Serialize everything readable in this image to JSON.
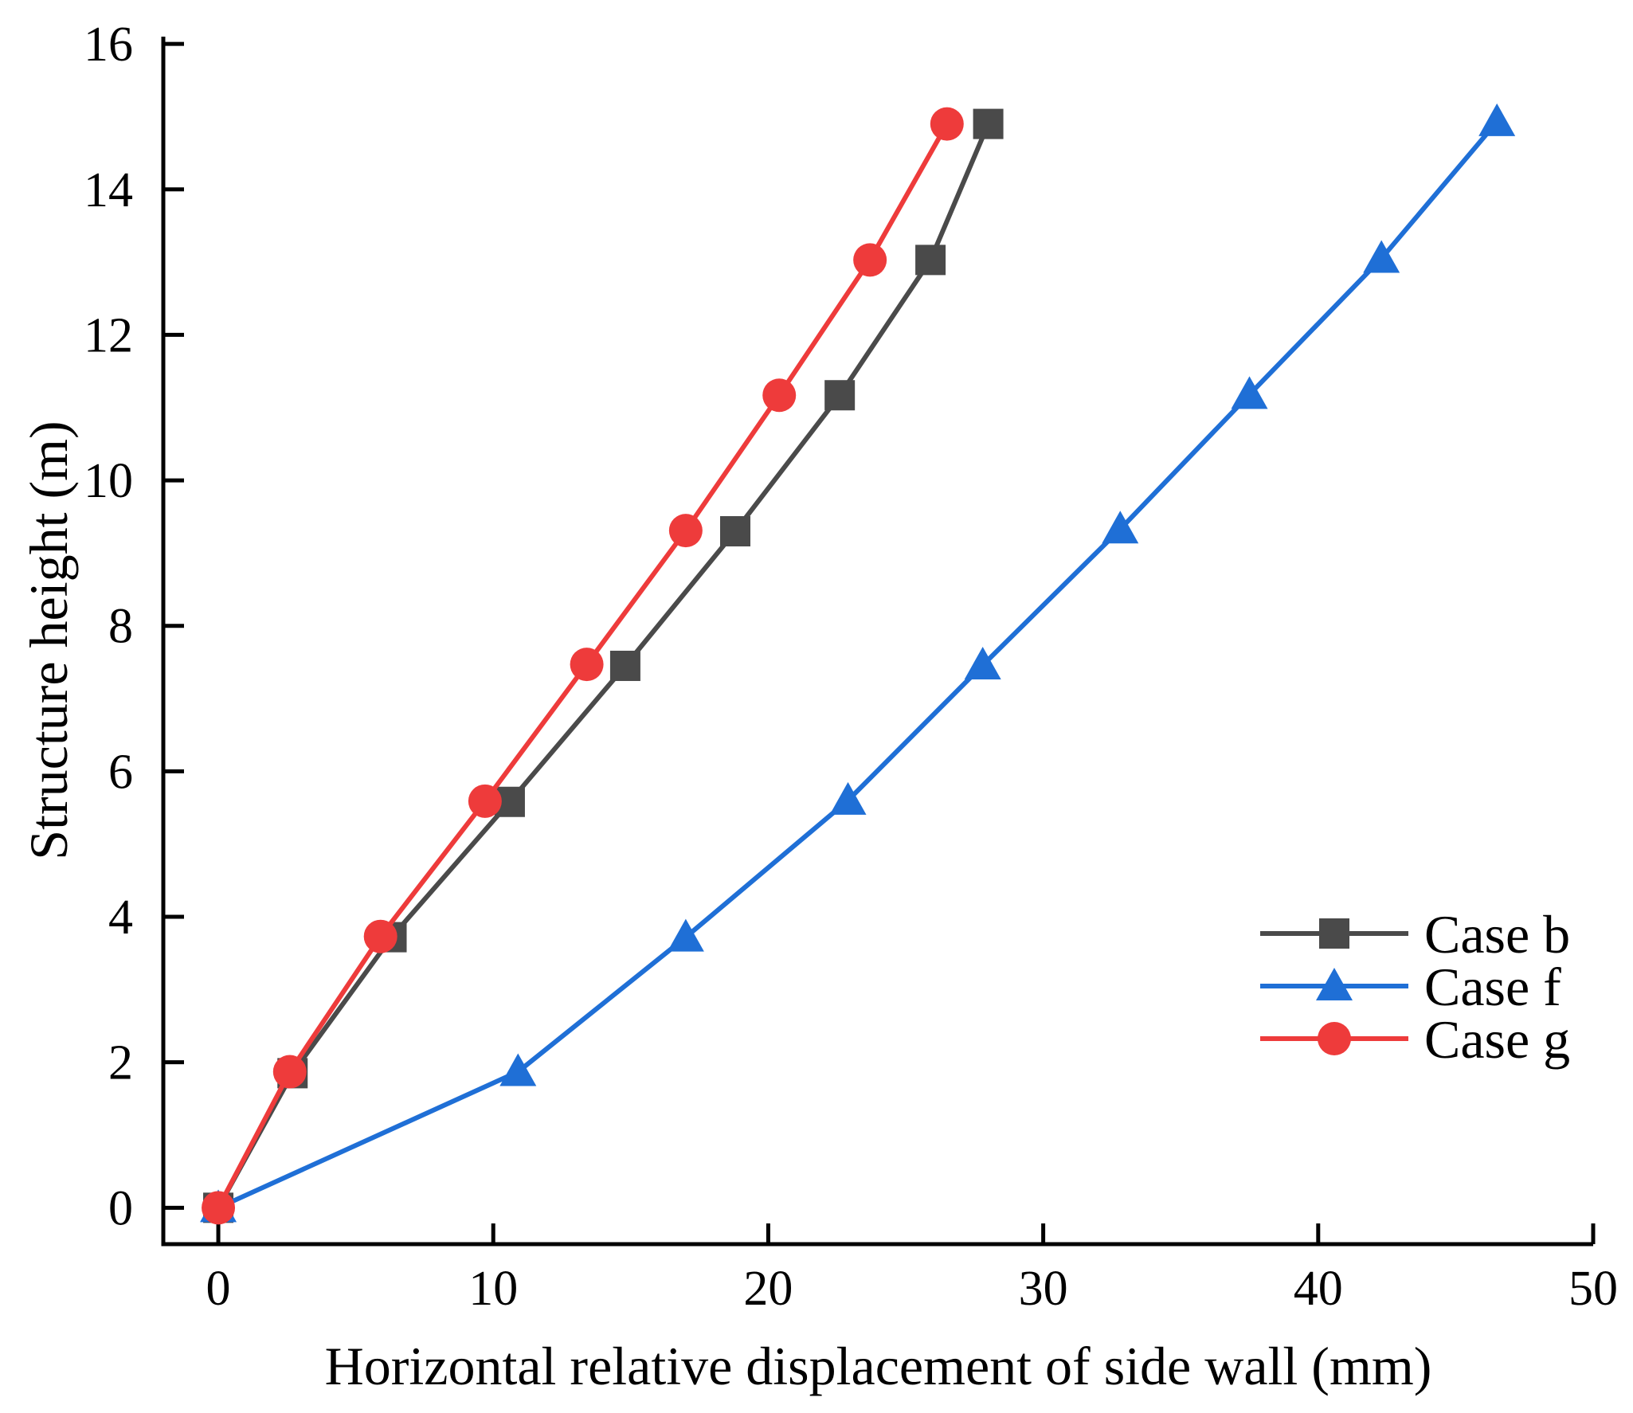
{
  "chart_data": {
    "type": "line",
    "title": "",
    "xlabel": "Horizontal relative displacement of side wall (mm)",
    "ylabel": "Structure height (m)",
    "xlim": [
      -2,
      50
    ],
    "ylim": [
      -0.5,
      16.1
    ],
    "xticks": [
      0,
      10,
      20,
      30,
      40,
      50
    ],
    "yticks": [
      0,
      2,
      4,
      6,
      8,
      10,
      12,
      14,
      16
    ],
    "legend_position": "bottom-right",
    "grid": false,
    "series": [
      {
        "name": "Case b",
        "color": "#4a4a4a",
        "marker": "square",
        "points": [
          [
            0,
            0
          ],
          [
            2.7,
            1.85
          ],
          [
            6.3,
            3.72
          ],
          [
            10.6,
            5.58
          ],
          [
            14.8,
            7.45
          ],
          [
            18.8,
            9.3
          ],
          [
            22.6,
            11.17
          ],
          [
            25.9,
            13.03
          ],
          [
            28,
            14.9
          ]
        ]
      },
      {
        "name": "Case f",
        "color": "#1f6fd6",
        "marker": "triangle",
        "points": [
          [
            0,
            0
          ],
          [
            10.9,
            1.87
          ],
          [
            17,
            3.72
          ],
          [
            22.9,
            5.6
          ],
          [
            27.8,
            7.46
          ],
          [
            32.8,
            9.33
          ],
          [
            37.5,
            11.18
          ],
          [
            42.3,
            13.05
          ],
          [
            46.5,
            14.93
          ]
        ]
      },
      {
        "name": "Case g",
        "color": "#ee3b3b",
        "marker": "circle",
        "points": [
          [
            0,
            0
          ],
          [
            2.6,
            1.87
          ],
          [
            5.9,
            3.73
          ],
          [
            9.7,
            5.59
          ],
          [
            13.4,
            7.47
          ],
          [
            17,
            9.31
          ],
          [
            20.4,
            11.17
          ],
          [
            23.7,
            13.03
          ],
          [
            26.5,
            14.9
          ]
        ]
      }
    ]
  }
}
